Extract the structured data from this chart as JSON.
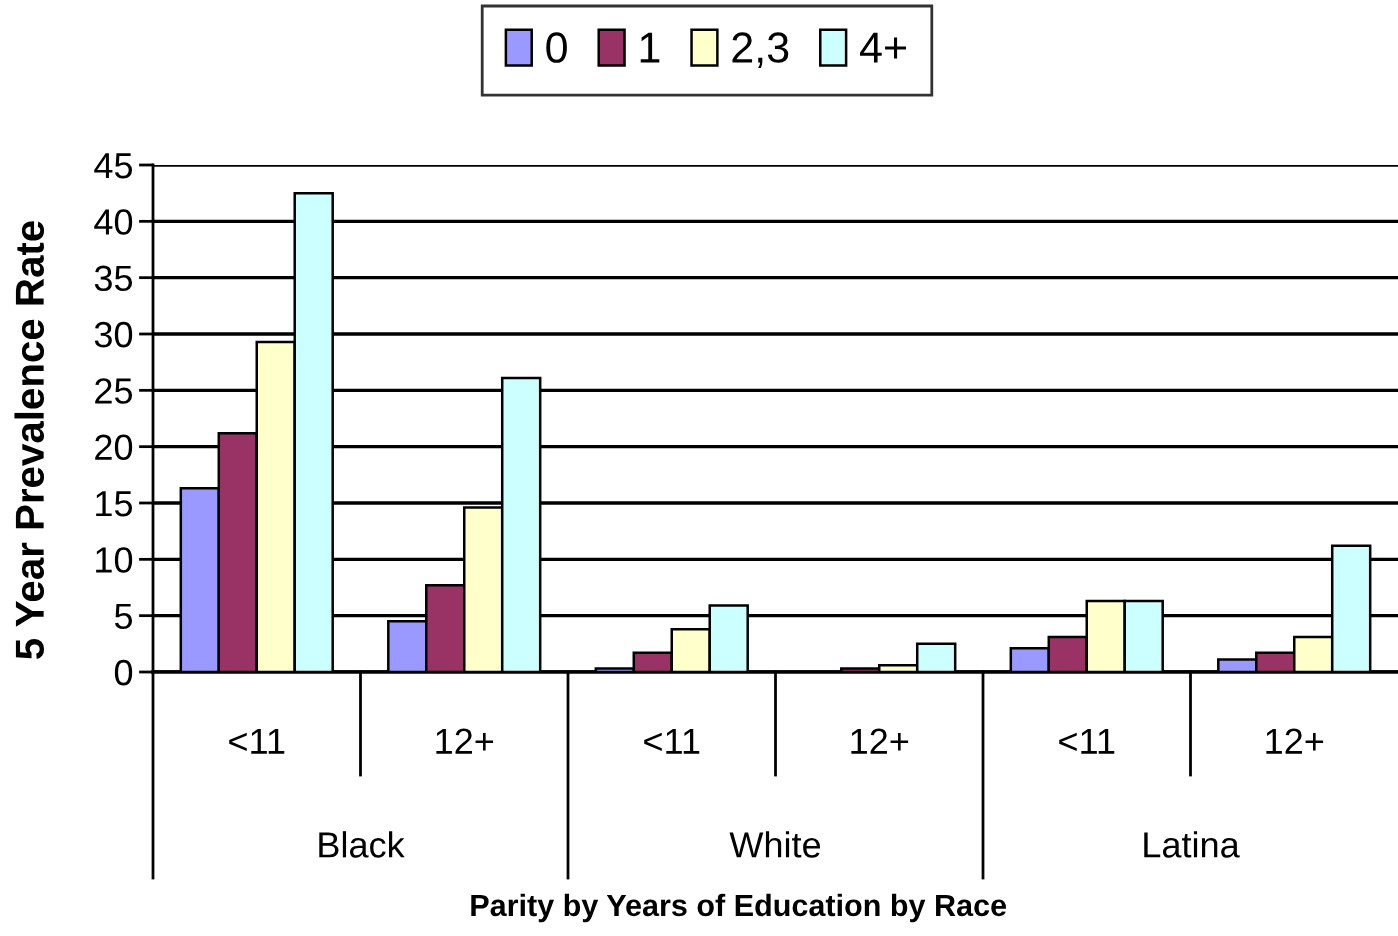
{
  "chart_data": {
    "type": "bar",
    "categories": [
      "<11",
      "12+",
      "<11",
      "12+",
      "<11",
      "12+"
    ],
    "series": [
      {
        "name": "0",
        "color": "#9999ff",
        "values": [
          16.3,
          4.5,
          0.3,
          null,
          2.1,
          1.1
        ]
      },
      {
        "name": "1",
        "color": "#993366",
        "values": [
          21.2,
          7.7,
          1.7,
          0.3,
          3.1,
          1.7
        ]
      },
      {
        "name": "2,3",
        "color": "#ffffcc",
        "values": [
          29.3,
          14.6,
          3.8,
          0.6,
          6.3,
          3.1
        ]
      },
      {
        "name": "4+",
        "color": "#ccffff",
        "values": [
          42.5,
          26.1,
          5.9,
          2.5,
          6.3,
          11.2
        ]
      }
    ],
    "annotations": [
      "Black",
      "White",
      "Latina"
    ],
    "xlabel": "Parity by Years of Education by Race",
    "ylabel": "5 Year Prevalence Rate",
    "ylim": [
      0,
      45
    ],
    "yticks": [
      0,
      5,
      10,
      15,
      20,
      25,
      30,
      35,
      40,
      45
    ],
    "grid": "y",
    "legend": "top"
  }
}
